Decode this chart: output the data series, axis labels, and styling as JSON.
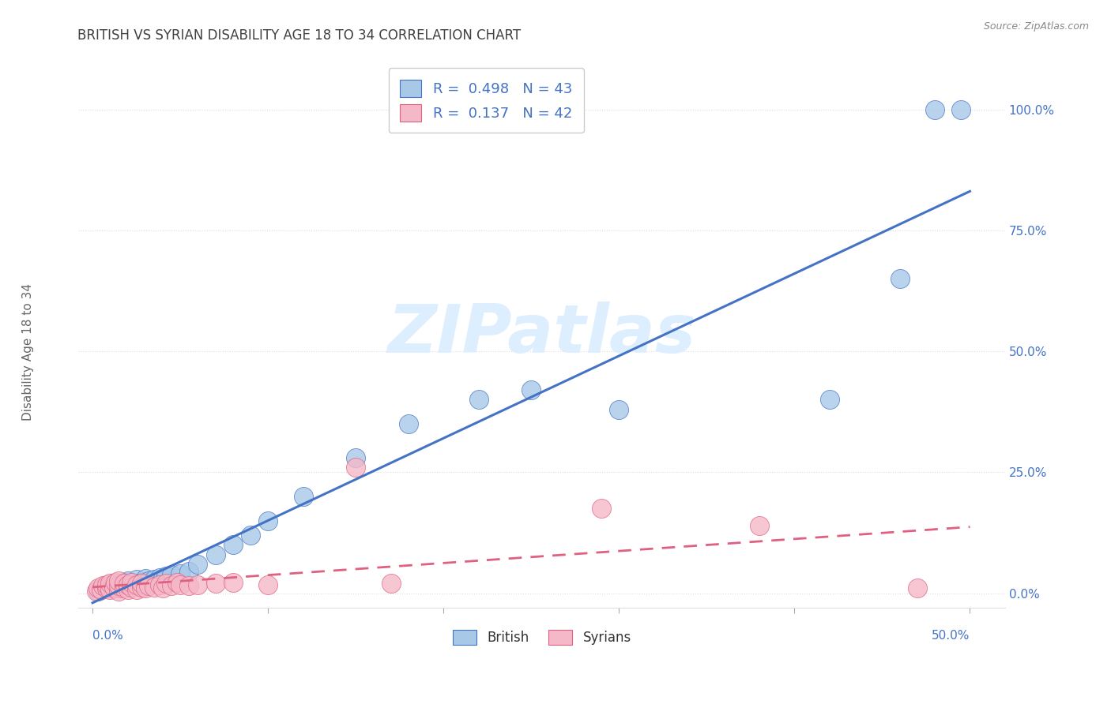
{
  "title": "BRITISH VS SYRIAN DISABILITY AGE 18 TO 34 CORRELATION CHART",
  "source": "Source: ZipAtlas.com",
  "ylabel": "Disability Age 18 to 34",
  "legend_british_label": "British",
  "legend_syrians_label": "Syrians",
  "british_R": "0.498",
  "british_N": "43",
  "syrian_R": "0.137",
  "syrian_N": "42",
  "british_color": "#a8c8e8",
  "syrian_color": "#f4b8c8",
  "british_line_color": "#4472c4",
  "syrian_line_color": "#e06080",
  "axis_label_color": "#4472c4",
  "title_color": "#404040",
  "source_color": "#888888",
  "watermark_color": "#ddeeff",
  "grid_color": "#dddddd",
  "ytick_vals": [
    0.0,
    0.25,
    0.5,
    0.75,
    1.0
  ],
  "ytick_labels": [
    "0.0%",
    "25.0%",
    "50.0%",
    "75.0%",
    "100.0%"
  ],
  "xlim": [
    -0.008,
    0.52
  ],
  "ylim": [
    -0.03,
    1.1
  ],
  "brit_x": [
    0.003,
    0.005,
    0.006,
    0.008,
    0.01,
    0.01,
    0.012,
    0.013,
    0.015,
    0.015,
    0.017,
    0.018,
    0.02,
    0.02,
    0.022,
    0.025,
    0.025,
    0.028,
    0.03,
    0.03,
    0.032,
    0.035,
    0.038,
    0.04,
    0.042,
    0.045,
    0.05,
    0.055,
    0.06,
    0.07,
    0.08,
    0.09,
    0.1,
    0.12,
    0.15,
    0.18,
    0.22,
    0.25,
    0.3,
    0.42,
    0.46,
    0.48,
    0.495
  ],
  "brit_y": [
    0.005,
    0.008,
    0.01,
    0.012,
    0.01,
    0.015,
    0.012,
    0.018,
    0.01,
    0.02,
    0.015,
    0.022,
    0.015,
    0.025,
    0.018,
    0.02,
    0.028,
    0.022,
    0.018,
    0.03,
    0.025,
    0.028,
    0.032,
    0.03,
    0.035,
    0.038,
    0.04,
    0.045,
    0.06,
    0.08,
    0.1,
    0.12,
    0.15,
    0.2,
    0.28,
    0.35,
    0.4,
    0.42,
    0.38,
    0.4,
    0.65,
    1.0,
    1.0
  ],
  "syr_x": [
    0.002,
    0.003,
    0.005,
    0.006,
    0.008,
    0.008,
    0.01,
    0.01,
    0.012,
    0.013,
    0.015,
    0.015,
    0.015,
    0.018,
    0.018,
    0.02,
    0.02,
    0.022,
    0.022,
    0.025,
    0.025,
    0.028,
    0.028,
    0.03,
    0.032,
    0.035,
    0.038,
    0.04,
    0.042,
    0.045,
    0.048,
    0.05,
    0.055,
    0.06,
    0.07,
    0.08,
    0.1,
    0.15,
    0.17,
    0.29,
    0.38,
    0.47
  ],
  "syr_y": [
    0.005,
    0.01,
    0.008,
    0.015,
    0.01,
    0.018,
    0.008,
    0.02,
    0.012,
    0.022,
    0.005,
    0.015,
    0.025,
    0.01,
    0.02,
    0.008,
    0.018,
    0.012,
    0.022,
    0.008,
    0.018,
    0.012,
    0.02,
    0.01,
    0.015,
    0.012,
    0.018,
    0.01,
    0.02,
    0.015,
    0.022,
    0.018,
    0.015,
    0.018,
    0.02,
    0.022,
    0.018,
    0.26,
    0.02,
    0.175,
    0.14,
    0.01
  ]
}
